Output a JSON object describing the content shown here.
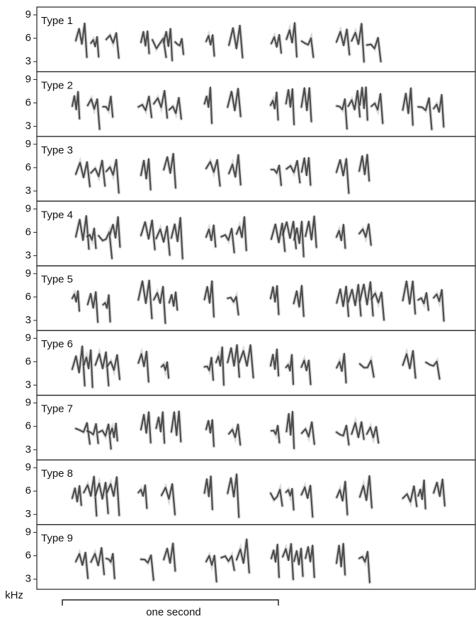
{
  "panels": [
    {
      "label": "Type 1"
    },
    {
      "label": "Type 2"
    },
    {
      "label": "Type 3"
    },
    {
      "label": "Type 4"
    },
    {
      "label": "Type 5"
    },
    {
      "label": "Type 6"
    },
    {
      "label": "Type 7"
    },
    {
      "label": "Type 8"
    },
    {
      "label": "Type 9"
    }
  ],
  "yticks": [
    9,
    6,
    3
  ],
  "ylim": [
    1.7,
    10
  ],
  "y_unit": "kHz",
  "scale_bar": "one second"
}
